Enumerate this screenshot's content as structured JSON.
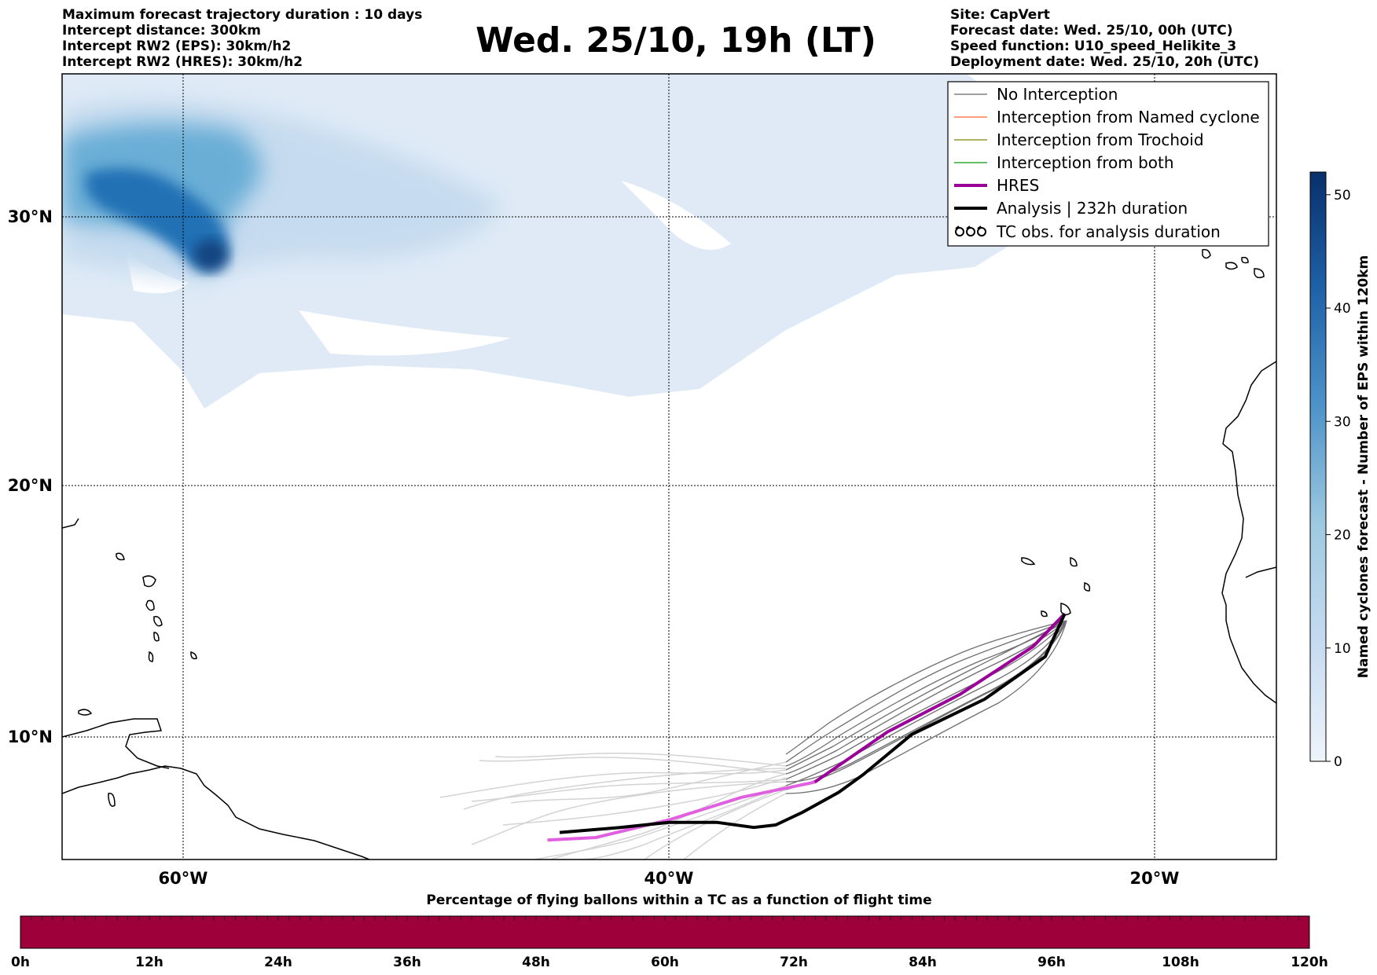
{
  "header_left": [
    "Maximum forecast trajectory duration : 10 days",
    "Intercept distance: 300km",
    "Intercept RW2 (EPS):  30km/h2",
    "Intercept RW2 (HRES): 30km/h2"
  ],
  "header_right": [
    "Site: CapVert",
    "Forecast date: Wed. 25/10, 00h (UTC)",
    "Speed function: U10_speed_Helikite_3",
    "Deployment date: Wed. 25/10, 20h (UTC)"
  ],
  "title": "Wed. 25/10, 19h (LT)",
  "map": {
    "lon_ticks": [
      "60°W",
      "40°W",
      "20°W"
    ],
    "lat_ticks": [
      "30°N",
      "20°N",
      "10°N"
    ],
    "lon_range": [
      -65,
      -15
    ],
    "lat_range": [
      5.5,
      35
    ]
  },
  "legend": {
    "placement": "top-right",
    "items": [
      {
        "label": "No Interception",
        "color": "#808080"
      },
      {
        "label": "Interception from Named cyclone",
        "color": "#ff7f50"
      },
      {
        "label": "Interception from Trochoid",
        "color": "#999933"
      },
      {
        "label": "Interception from both",
        "color": "#33aa33"
      },
      {
        "label": "HRES",
        "color": "#990099"
      },
      {
        "label": "Analysis | 232h duration",
        "color": "#000000"
      },
      {
        "label": "TC obs. for analysis duration",
        "icon": "tc-symbol-icon"
      }
    ]
  },
  "colorbar_right": {
    "label": "Named cyclones forecast - Number of EPS within 120km",
    "ticks": [
      "0",
      "10",
      "20",
      "30",
      "40",
      "50"
    ],
    "range": [
      0,
      52
    ]
  },
  "colorbar_bottom": {
    "title": "Percentage of flying ballons within a TC as a function of flight time",
    "ticks": [
      "0h",
      "12h",
      "24h",
      "36h",
      "48h",
      "60h",
      "72h",
      "84h",
      "96h",
      "108h",
      "120h"
    ],
    "color": "#9e0039"
  },
  "chart_data": {
    "type": "map",
    "hres_track": [
      [
        -23.7,
        14.9
      ],
      [
        -25,
        13.6
      ],
      [
        -28,
        11.7
      ],
      [
        -31,
        10.2
      ],
      [
        -34,
        8.2
      ],
      [
        -37,
        7.6
      ],
      [
        -40,
        6.7
      ],
      [
        -43,
        6.0
      ],
      [
        -45,
        5.9
      ]
    ],
    "analysis_track": [
      [
        -23.7,
        14.9
      ],
      [
        -24.5,
        13.2
      ],
      [
        -27,
        11.5
      ],
      [
        -30,
        10.1
      ],
      [
        -32,
        8.5
      ],
      [
        -33,
        7.8
      ],
      [
        -34.5,
        7.0
      ],
      [
        -35.6,
        6.5
      ],
      [
        -36.5,
        6.4
      ],
      [
        -38,
        6.6
      ],
      [
        -40,
        6.6
      ],
      [
        -42,
        6.4
      ],
      [
        -44.5,
        6.2
      ]
    ]
  }
}
